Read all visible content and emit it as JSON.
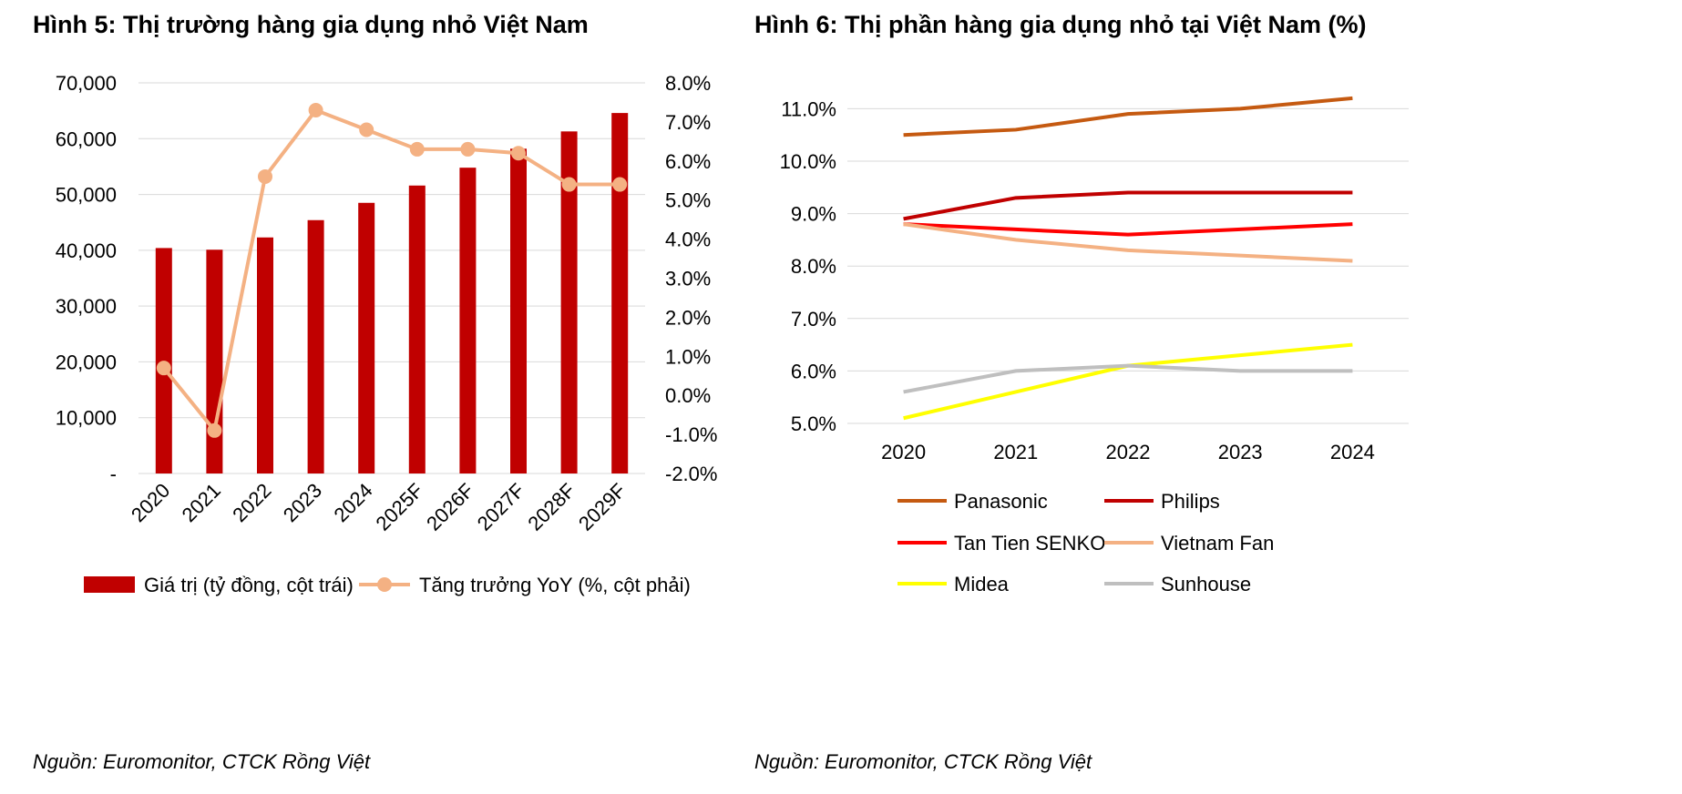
{
  "colors": {
    "bar": "#C00000",
    "growth_line": "#F4B183",
    "gridline": "#D9D9D9"
  },
  "chart_data": [
    {
      "type": "bar",
      "title": "Hình 5: Thị trường hàng gia dụng nhỏ Việt Nam",
      "source": "Nguồn: Euromonitor, CTCK Rồng Việt",
      "categories": [
        "2020",
        "2021",
        "2022",
        "2023",
        "2024",
        "2025F",
        "2026F",
        "2027F",
        "2028F",
        "2029F"
      ],
      "series": [
        {
          "name": "Giá trị (tỷ đồng, cột trái)",
          "type": "bar",
          "axis": "left",
          "values": [
            40400,
            40100,
            42300,
            45400,
            48500,
            51600,
            54800,
            58200,
            61300,
            64600
          ]
        },
        {
          "name": "Tăng trưởng YoY (%, cột phải)",
          "type": "line",
          "axis": "right",
          "values": [
            0.7,
            -0.9,
            5.6,
            7.3,
            6.8,
            6.3,
            6.3,
            6.2,
            5.4,
            5.4
          ]
        }
      ],
      "left_axis": {
        "ylim": [
          0,
          70000
        ],
        "tick_labels": [
          "-",
          "10,000",
          "20,000",
          "30,000",
          "40,000",
          "50,000",
          "60,000",
          "70,000"
        ]
      },
      "right_axis": {
        "ylim": [
          -2,
          8
        ],
        "tick_labels": [
          "-2.0%",
          "-1.0%",
          "0.0%",
          "1.0%",
          "2.0%",
          "3.0%",
          "4.0%",
          "5.0%",
          "6.0%",
          "7.0%",
          "8.0%"
        ]
      },
      "grid": true,
      "legend": "bottom"
    },
    {
      "type": "line",
      "title": "Hình 6: Thị phần hàng gia dụng nhỏ tại Việt Nam (%)",
      "source": "Nguồn: Euromonitor, CTCK Rồng Việt",
      "x": [
        "2020",
        "2021",
        "2022",
        "2023",
        "2024"
      ],
      "series": [
        {
          "name": "Panasonic",
          "color": "#C55A11",
          "values": [
            10.5,
            10.6,
            10.9,
            11.0,
            11.2
          ]
        },
        {
          "name": "Philips",
          "color": "#C00000",
          "values": [
            8.9,
            9.3,
            9.4,
            9.4,
            9.4
          ]
        },
        {
          "name": "Tan Tien SENKO",
          "color": "#FF0000",
          "values": [
            8.8,
            8.7,
            8.6,
            8.7,
            8.8
          ]
        },
        {
          "name": "Vietnam Fan",
          "color": "#F4B183",
          "values": [
            8.8,
            8.5,
            8.3,
            8.2,
            8.1
          ]
        },
        {
          "name": "Midea",
          "color": "#FFFF00",
          "values": [
            5.1,
            5.6,
            6.1,
            6.3,
            6.5
          ]
        },
        {
          "name": "Sunhouse",
          "color": "#BFBFBF",
          "values": [
            5.6,
            6.0,
            6.1,
            6.0,
            6.0
          ]
        }
      ],
      "ylim": [
        5,
        11.5
      ],
      "tick_labels": [
        "5.0%",
        "6.0%",
        "7.0%",
        "8.0%",
        "9.0%",
        "10.0%",
        "11.0%"
      ],
      "grid": true,
      "legend": "bottom"
    }
  ]
}
